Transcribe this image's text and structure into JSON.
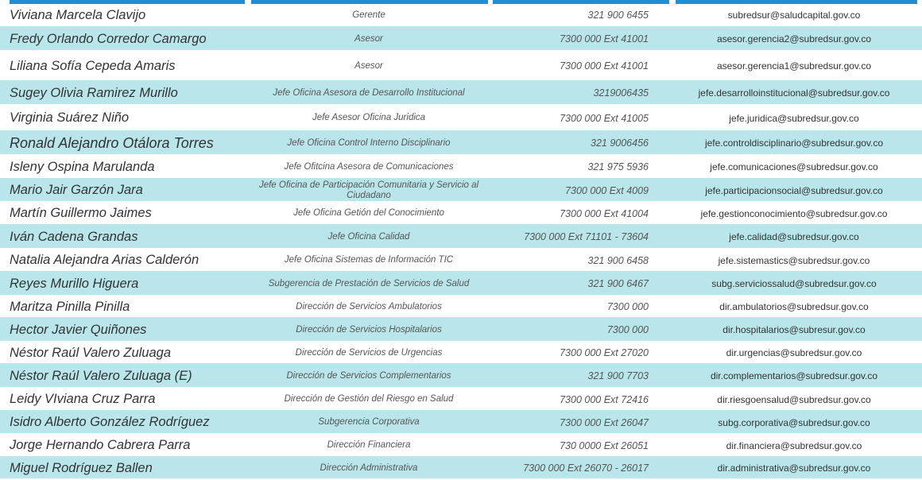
{
  "directory": {
    "rows": [
      {
        "name": "Viviana Marcela Clavijo",
        "role": "Gerente",
        "phone": "321 900 6455",
        "email": "subredsur@saludcapital.gov.co"
      },
      {
        "name": "Fredy Orlando Corredor Camargo",
        "role": "Asesor",
        "phone": "7300 000 Ext 41001",
        "email": "asesor.gerencia2@subredsur.gov.co"
      },
      {
        "name": "Liliana Sofía Cepeda Amaris",
        "role": "Asesor",
        "phone": "7300 000 Ext 41001",
        "email": "asesor.gerencia1@subredsur.gov.co"
      },
      {
        "name": "Sugey Olivia Ramirez Murillo",
        "role": "Jefe Oficina Asesora de Desarrollo Institucional",
        "phone": "3219006435",
        "email": "jefe.desarrolloinstitucional@subredsur.gov.co"
      },
      {
        "name": "Virginia Suárez Niño",
        "role": "Jefe Asesor Oficina Juridica",
        "phone": "7300 000 Ext 41005",
        "email": "jefe.juridica@subredsur.gov.co"
      },
      {
        "name": "Ronald Alejandro Otálora Torres",
        "role": "Jefe Oficina Control Interno Disciplinario",
        "phone": "321 9006456",
        "email": "jefe.controldisciplinario@subredsur.gov.co"
      },
      {
        "name": "Isleny Ospina Marulanda",
        "role": "Jefe Ofitcina Asesora de Comunicaciones",
        "phone": "321 975 5936",
        "email": "jefe.comunicaciones@subredsur.gov.co"
      },
      {
        "name": "Mario Jair Garzón Jara",
        "role": "Jefe Oficina de Participación Comunitaria y Servicio al Ciudadano",
        "phone": "7300 000 Ext 4009",
        "email": "jefe.participacionsocial@subredsur.gov.co"
      },
      {
        "name": "Martín Guillermo Jaimes",
        "role": "Jefe Oficina Getión del Conocimiento",
        "phone": "7300 000 Ext 41004",
        "email": "jefe.gestionconocimiento@subredsur.gov.co"
      },
      {
        "name": "Iván Cadena Grandas",
        "role": "Jefe Oficina Calidad",
        "phone": "7300 000 Ext 71101 - 73604",
        "email": "jefe.calidad@subredsur.gov.co"
      },
      {
        "name": "Natalia Alejandra Arias Calderón",
        "role": "Jefe Oficina Sistemas de Información TIC",
        "phone": "321 900 6458",
        "email": "jefe.sistemastics@subredsur.gov.co"
      },
      {
        "name": "Reyes Murillo Higuera",
        "role": "Subgerencia de Prestación de Servicios de Salud",
        "phone": "321 900 6467",
        "email": "subg.serviciossalud@subredsur.gov.co"
      },
      {
        "name": "Maritza Pinilla Pinilla",
        "role": "Dirección de Servicios Ambulatorios",
        "phone": "7300 000",
        "email": "dir.ambulatorios@subredsur.gov.co"
      },
      {
        "name": "Hector Javier Quiñones",
        "role": "Dirección de Servicios Hospitalarios",
        "phone": "7300 000",
        "email": "dir.hospitalarios@subresur.gov.co"
      },
      {
        "name": "Néstor Raúl Valero Zuluaga",
        "role": "Dirección de Servicios de Urgencias",
        "phone": "7300 000 Ext 27020",
        "email": "dir.urgencias@subredsur.gov.co"
      },
      {
        "name": "Néstor Raúl Valero Zuluaga (E)",
        "role": "Dirección de Servicios Complementarios",
        "phone": "321 900 7703",
        "email": "dir.complementarios@subredsur.gov.co"
      },
      {
        "name": "Leidy VIviana Cruz Parra",
        "role": "Dirección de Gestión del Riesgo en Salud",
        "phone": "7300 000 Ext 72416",
        "email": "dir.riesgoensalud@subredsur.gov.co"
      },
      {
        "name": "Isidro Alberto González Rodríguez",
        "role": "Subgerencia Corporativa",
        "phone": "7300 000 Ext 26047",
        "email": "subg.corporativa@subredsur.gov.co"
      },
      {
        "name": "Jorge Hernando Cabrera Parra",
        "role": "Dirección Financiera",
        "phone": "730 0000 Ext 26051",
        "email": "dir.financiera@subredsur.gov.co"
      },
      {
        "name": "Miguel Rodríguez Ballen",
        "role": "Dirección Administrativa",
        "phone": "7300 000 Ext 26070 - 26017",
        "email": "dir.administrativa@subredsur.gov.co"
      }
    ]
  },
  "colors": {
    "header_bar": "#1f8fd4",
    "row_alt": "#b9e6ea",
    "text": "#333333"
  }
}
